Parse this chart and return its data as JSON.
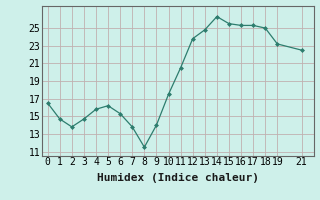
{
  "x": [
    0,
    1,
    2,
    3,
    4,
    5,
    6,
    7,
    8,
    9,
    10,
    11,
    12,
    13,
    14,
    15,
    16,
    17,
    18,
    19,
    21
  ],
  "y": [
    16.5,
    14.7,
    13.8,
    14.7,
    15.8,
    16.2,
    15.3,
    13.8,
    11.5,
    14.0,
    17.5,
    20.5,
    23.8,
    24.8,
    26.3,
    25.5,
    25.3,
    25.3,
    25.0,
    23.2,
    22.5
  ],
  "line_color": "#2d7d6e",
  "marker": "D",
  "marker_size": 2.0,
  "bg_color": "#cef0ea",
  "grid_color": "#c0b0b0",
  "xlabel": "Humidex (Indice chaleur)",
  "xlabel_fontsize": 8,
  "tick_fontsize": 7,
  "ylim": [
    10.5,
    27.5
  ],
  "xlim": [
    -0.5,
    22
  ],
  "yticks": [
    11,
    13,
    15,
    17,
    19,
    21,
    23,
    25
  ],
  "xticks": [
    0,
    1,
    2,
    3,
    4,
    5,
    6,
    7,
    8,
    9,
    10,
    11,
    12,
    13,
    14,
    15,
    16,
    17,
    18,
    19,
    21
  ]
}
